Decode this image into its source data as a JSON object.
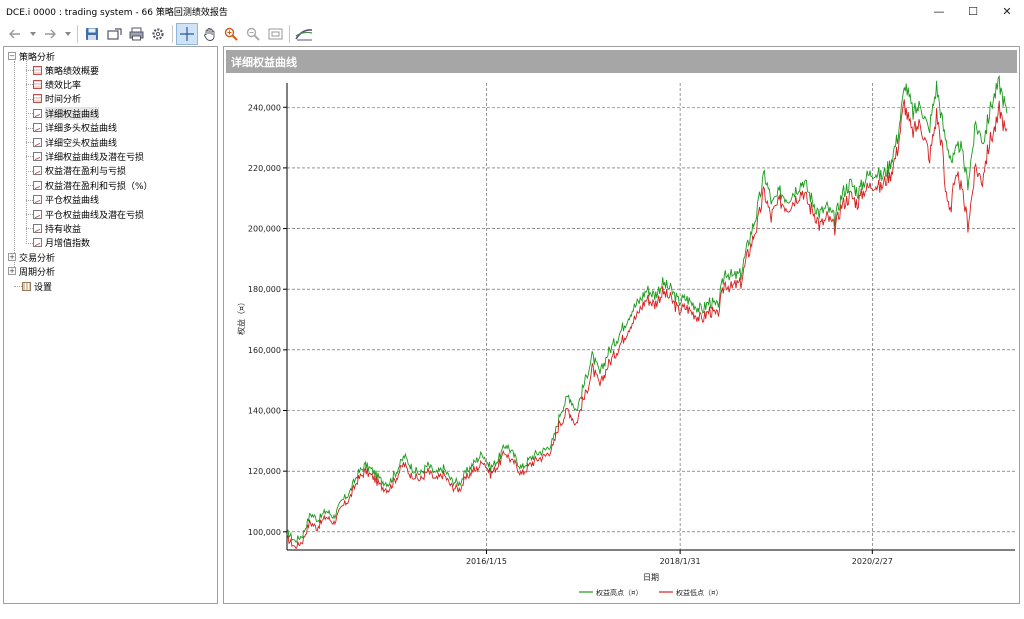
{
  "window": {
    "title": "DCE.i 0000 : trading system - 66 策略回测绩效报告",
    "minimize": "—",
    "maximize": "☐",
    "close": "✕"
  },
  "toolbar": {
    "icons": [
      "back-arrow-icon",
      "dropdown-icon",
      "forward-arrow-icon",
      "dropdown-icon",
      "save-icon",
      "export-icon",
      "print-icon",
      "settings-icon",
      "crosshair-icon",
      "hand-icon",
      "zoom-in-icon",
      "zoom-out-icon",
      "fit-icon",
      "curve-icon"
    ]
  },
  "tree": {
    "root1": "策略分析",
    "items": [
      "策略绩效概要",
      "绩效比率",
      "时间分析",
      "详细权益曲线",
      "详细多头权益曲线",
      "详细空头权益曲线",
      "详细权益曲线及潜在亏损",
      "权益潜在盈利与亏损",
      "权益潜在盈利和亏损（%）",
      "平仓权益曲线",
      "平仓权益曲线及潜在亏损",
      "持有收益",
      "月增值指数"
    ],
    "root2": "交易分析",
    "root3": "周期分析",
    "settings": "设置",
    "selected_index": 3
  },
  "chart_header": "详细权益曲线",
  "chart_data": {
    "type": "line",
    "xlabel": "日期",
    "ylabel": "权益（¤）",
    "x_ticks": [
      "2016/1/15",
      "2018/1/31",
      "2020/2/27"
    ],
    "y_ticks": [
      "100,000",
      "120,000",
      "140,000",
      "160,000",
      "180,000",
      "200,000",
      "220,000",
      "240,000"
    ],
    "ylim": [
      94000,
      248000
    ],
    "grid": true,
    "legend_position": "bottom-center",
    "colors": {
      "high": "#1a9a1a",
      "low": "#d42020"
    },
    "series": [
      {
        "name": "权益高点（¤）",
        "color": "#1a9a1a",
        "values": [
          100000,
          97000,
          99000,
          106000,
          104000,
          107000,
          105000,
          110000,
          113000,
          119000,
          122000,
          120000,
          117000,
          116000,
          120000,
          125000,
          121000,
          119000,
          122000,
          119000,
          121000,
          117000,
          116000,
          120000,
          123000,
          126000,
          121000,
          124000,
          129000,
          125000,
          121000,
          124000,
          126000,
          127000,
          130000,
          140000,
          145000,
          140000,
          149000,
          158000,
          152000,
          159000,
          163000,
          168000,
          173000,
          176000,
          180000,
          178000,
          182000,
          180000,
          176000,
          177000,
          175000,
          173000,
          176000,
          174000,
          186000,
          184000,
          185000,
          196000,
          205000,
          218000,
          208000,
          212000,
          210000,
          213000,
          216000,
          210000,
          205000,
          207000,
          203000,
          212000,
          215000,
          212000,
          217000,
          219000,
          217000,
          221000,
          230000,
          248000,
          238000,
          241000,
          232000,
          247000,
          231000,
          222000,
          228000,
          215000,
          234000,
          229000,
          241000,
          248000,
          238000
        ]
      },
      {
        "name": "权益低点（¤）",
        "color": "#d42020",
        "values": [
          98000,
          95000,
          97000,
          103000,
          102000,
          105000,
          103000,
          108000,
          111000,
          117000,
          120000,
          118000,
          115000,
          114000,
          118000,
          122000,
          119000,
          117000,
          120000,
          117000,
          119000,
          115000,
          114000,
          118000,
          120000,
          124000,
          119000,
          122000,
          126000,
          123000,
          119000,
          122000,
          124000,
          125000,
          128000,
          136000,
          140000,
          136000,
          144000,
          154000,
          148000,
          155000,
          159000,
          164000,
          169000,
          173000,
          177000,
          175000,
          179000,
          177000,
          173000,
          174000,
          172000,
          170000,
          173000,
          171000,
          182000,
          181000,
          182000,
          192000,
          200000,
          212000,
          205000,
          209000,
          207000,
          210000,
          212000,
          207000,
          201000,
          204000,
          200000,
          208000,
          211000,
          209000,
          213000,
          215000,
          214000,
          217000,
          226000,
          240000,
          232000,
          234000,
          222000,
          238000,
          214000,
          212000,
          215000,
          201000,
          220000,
          219000,
          230000,
          240000,
          233000
        ]
      }
    ]
  }
}
